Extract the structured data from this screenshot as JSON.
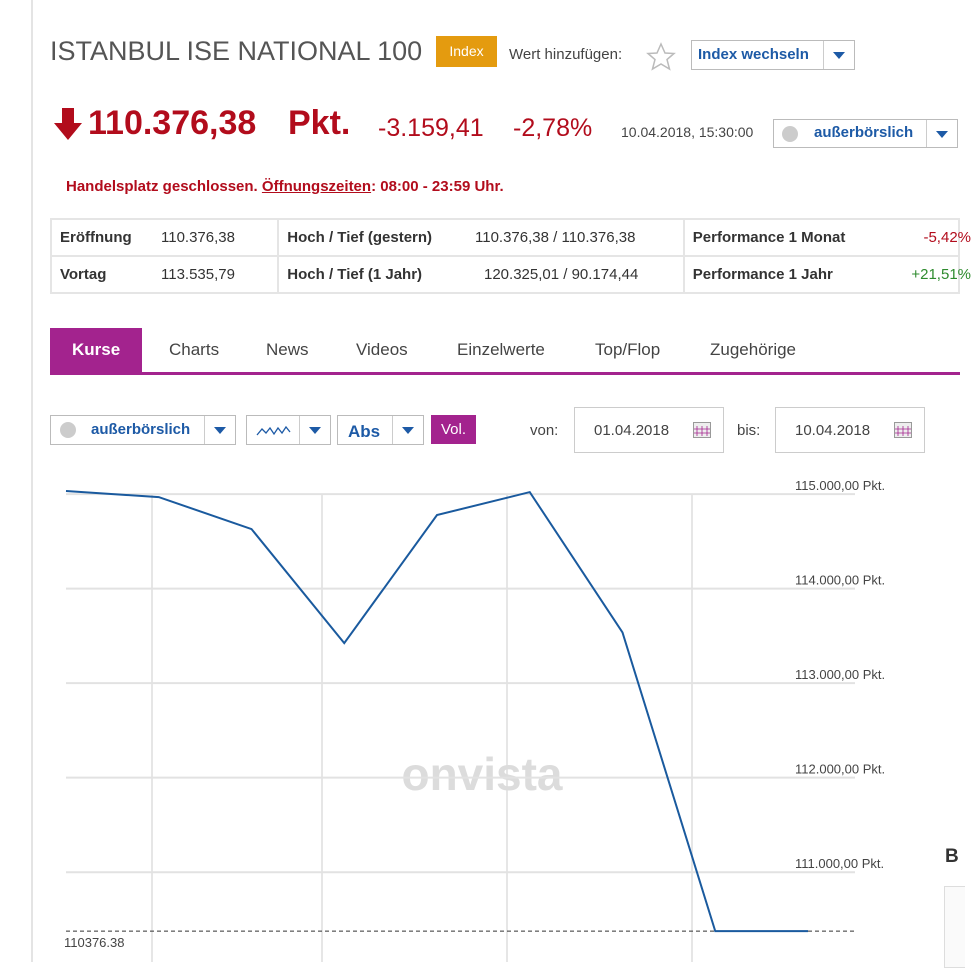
{
  "header": {
    "title": "ISTANBUL ISE NATIONAL 100",
    "badge": "Index",
    "add_label": "Wert hinzufügen:",
    "switch": "Index wechseln"
  },
  "quote": {
    "price": "110.376,38",
    "unit": "Pkt.",
    "change": "-3.159,41",
    "change_pct": "-2,78%",
    "datetime": "10.04.2018, 15:30:00",
    "venue": "außerbörslich"
  },
  "notice": {
    "text": "Handelsplatz geschlossen.",
    "link": "Öffnungszeiten",
    "hours": ": 08:00 - 23:59 Uhr."
  },
  "table": {
    "rows": [
      [
        "Eröffnung",
        "110.376,38",
        "Hoch / Tief (gestern)",
        "110.376,38 / 110.376,38",
        "Performance 1 Monat",
        "-5,42%"
      ],
      [
        "Vortag",
        "113.535,79",
        "Hoch / Tief (1 Jahr)",
        "120.325,01 / 90.174,44",
        "Performance 1 Jahr",
        "+21,51%"
      ]
    ]
  },
  "tabs": [
    "Kurse",
    "Charts",
    "News",
    "Videos",
    "Einzelwerte",
    "Top/Flop",
    "Zugehörige"
  ],
  "controls": {
    "venue": "außerbörslich",
    "mode": "Abs",
    "volume": "Vol.",
    "from_label": "von:",
    "from": "01.04.2018",
    "to_label": "bis:",
    "to": "10.04.2018"
  },
  "side_heading": "B",
  "chart_data": {
    "type": "line",
    "watermark": "onvista",
    "values": [
      115032,
      114968,
      114630,
      113423,
      114778,
      115021,
      113535.79,
      110376.38,
      110376.38
    ],
    "color": "#1a5a9e",
    "ylim": [
      110050,
      115170
    ],
    "yticks": [
      {
        "value": 111000,
        "label": "111.000,00 Pkt."
      },
      {
        "value": 112000,
        "label": "112.000,00 Pkt."
      },
      {
        "value": 113000,
        "label": "113.000,00 Pkt."
      },
      {
        "value": 114000,
        "label": "114.000,00 Pkt."
      },
      {
        "value": 115000,
        "label": "115.000,00 Pkt."
      }
    ],
    "reference_line": 110376.38,
    "grid": true
  }
}
